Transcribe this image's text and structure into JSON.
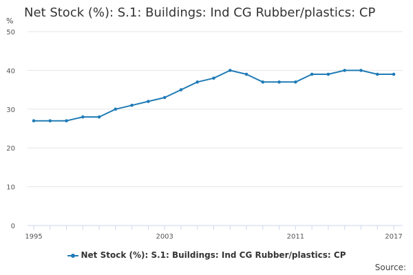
{
  "colors": {
    "series": "#1f7bb6",
    "grid": "#e6e6e6",
    "axis": "#ccd6eb"
  },
  "source_label": "Source:",
  "chart_data": {
    "type": "line",
    "title": "Net Stock (%): S.1: Buildings: Ind CG Rubber/plastics: CP",
    "ylabel": "%",
    "xlabel": "",
    "ylim": [
      0,
      50
    ],
    "yticks": [
      0,
      10,
      20,
      30,
      40,
      50
    ],
    "xtick_labels": [
      "1995",
      "2003",
      "2011",
      "2017"
    ],
    "x": [
      1995,
      1996,
      1997,
      1998,
      1999,
      2000,
      2001,
      2002,
      2003,
      2004,
      2005,
      2006,
      2007,
      2008,
      2009,
      2010,
      2011,
      2012,
      2013,
      2014,
      2015,
      2016,
      2017
    ],
    "series": [
      {
        "name": "Net Stock (%): S.1: Buildings: Ind CG Rubber/plastics: CP",
        "values": [
          27,
          27,
          27,
          28,
          28,
          30,
          31,
          32,
          33,
          35,
          37,
          38,
          40,
          39,
          37,
          37,
          37,
          39,
          39,
          40,
          40,
          39,
          39
        ]
      }
    ],
    "legend_position": "bottom"
  }
}
